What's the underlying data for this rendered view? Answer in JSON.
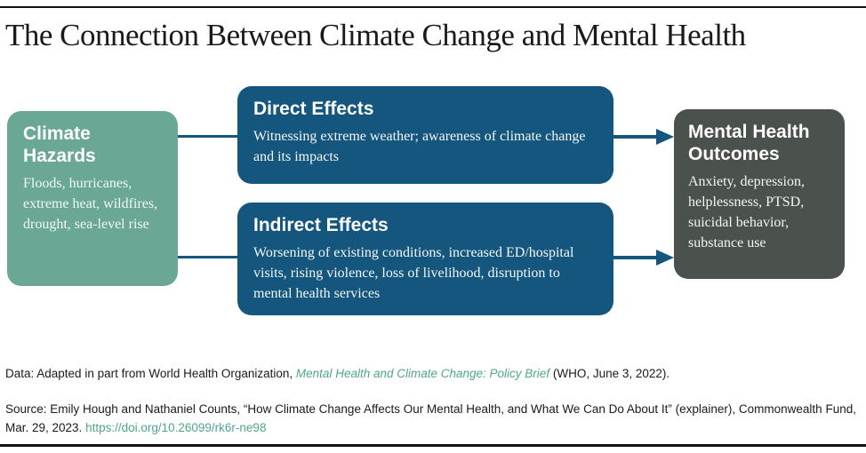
{
  "title": "The Connection Between Climate Change and Mental Health",
  "diagram": {
    "climate_hazards": {
      "heading": "Climate Hazards",
      "body": "Floods, hurricanes, extreme heat, wildfires, drought, sea-level rise"
    },
    "direct_effects": {
      "heading": "Direct Effects",
      "body": "Witnessing extreme weather; awareness of climate change and its impacts"
    },
    "indirect_effects": {
      "heading": "Indirect Effects",
      "body": "Worsening of existing conditions, increased ED/hospital visits, rising violence, loss of livelihood, disruption to mental health services"
    },
    "mental_health_outcomes": {
      "heading": "Mental Health Outcomes",
      "body": "Anxiety, depression, helplessness, PTSD, suicidal behavior, substance use"
    }
  },
  "footer": {
    "data_prefix": "Data: Adapted in part from World Health Organization, ",
    "data_link": "Mental Health and Climate Change: Policy Brief",
    "data_suffix": " (WHO, June 3, 2022).",
    "source_text": "Source: Emily Hough and Nathaniel Counts, “How Climate Change Affects Our Mental Health, and What We Can Do About It” (explainer), Commonwealth Fund, Mar. 29, 2023. ",
    "source_link": "https://doi.org/10.26099/rk6r-ne98"
  },
  "colors": {
    "climate_box": "#6aa794",
    "effects_box": "#14567d",
    "outcomes_box": "#4b514c",
    "arrow": "#14567d",
    "link": "#4fa68d",
    "rule": "#111111"
  }
}
